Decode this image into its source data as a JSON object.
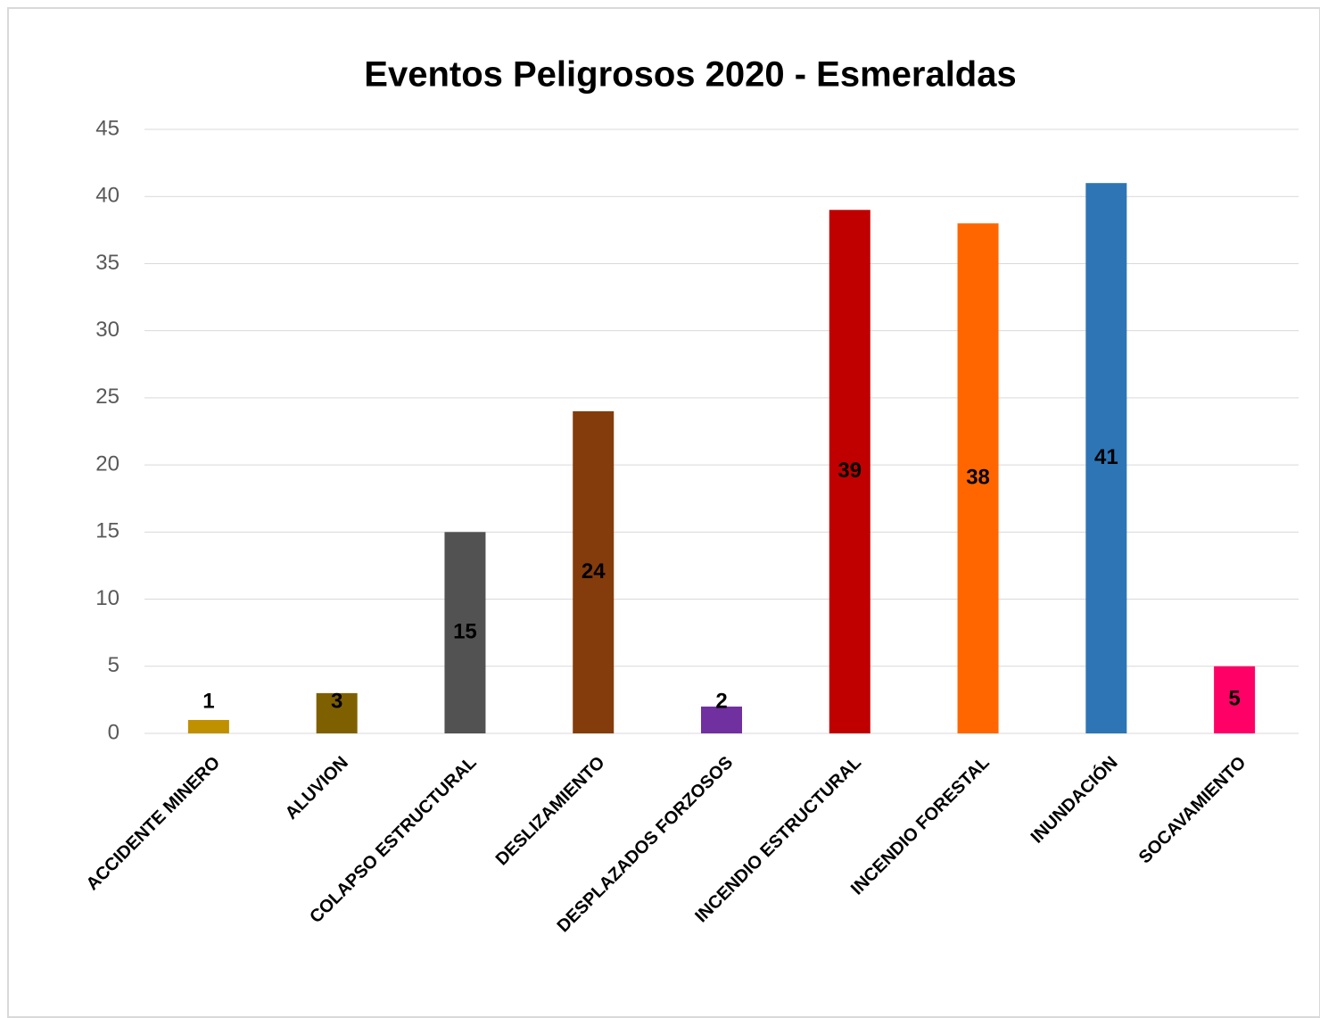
{
  "chart_data": {
    "type": "bar",
    "title": "Eventos Peligrosos 2020 - Esmeraldas",
    "categories": [
      "ACCIDENTE MINERO",
      "ALUVION",
      "COLAPSO ESTRUCTURAL",
      "DESLIZAMIENTO",
      "DESPLAZADOS FORZOSOS",
      "INCENDIO ESTRUCTURAL",
      "INCENDIO FORESTAL",
      "INUNDACIÓN",
      "SOCAVAMIENTO"
    ],
    "values": [
      1,
      3,
      15,
      24,
      2,
      39,
      38,
      41,
      5
    ],
    "colors": [
      "#bf9000",
      "#7f6000",
      "#525252",
      "#843c0c",
      "#7030a0",
      "#c00000",
      "#ff6600",
      "#2e75b6",
      "#ff0066"
    ],
    "ylim": [
      0,
      45
    ],
    "yticks": [
      0,
      5,
      10,
      15,
      20,
      25,
      30,
      35,
      40,
      45
    ],
    "grid": true
  }
}
